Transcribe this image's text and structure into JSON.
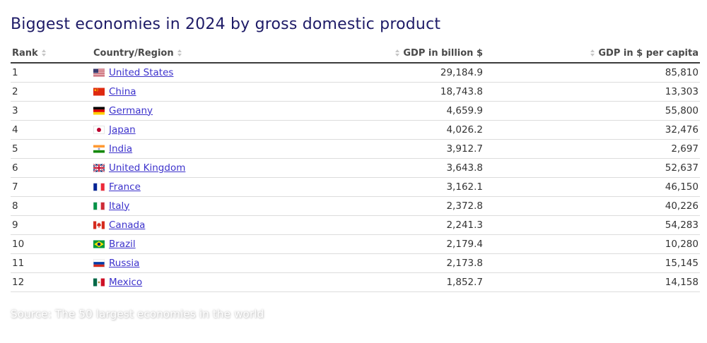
{
  "title": "Biggest economies in 2024 by gross domestic product",
  "colors": {
    "title_text": "#1e1b67",
    "link": "#3d33cc",
    "header_text": "#4a4a4a",
    "sort_icon": "#c6c6c6",
    "row_divider": "#dcdcdc",
    "header_divider": "#3c3c3c"
  },
  "table": {
    "columns": [
      {
        "key": "rank",
        "label": "Rank",
        "align": "left"
      },
      {
        "key": "country",
        "label": "Country/Region",
        "align": "left"
      },
      {
        "key": "gdp_billion",
        "label": "GDP in billion $",
        "align": "right"
      },
      {
        "key": "gdp_per_capita",
        "label": "GDP in $ per capita",
        "align": "right"
      }
    ],
    "rows": [
      {
        "rank": "1",
        "country": "United States",
        "flag": "us",
        "gdp_billion": "29,184.9",
        "gdp_per_capita": "85,810"
      },
      {
        "rank": "2",
        "country": "China",
        "flag": "cn",
        "gdp_billion": "18,743.8",
        "gdp_per_capita": "13,303"
      },
      {
        "rank": "3",
        "country": "Germany",
        "flag": "de",
        "gdp_billion": "4,659.9",
        "gdp_per_capita": "55,800"
      },
      {
        "rank": "4",
        "country": "Japan",
        "flag": "jp",
        "gdp_billion": "4,026.2",
        "gdp_per_capita": "32,476"
      },
      {
        "rank": "5",
        "country": "India",
        "flag": "in",
        "gdp_billion": "3,912.7",
        "gdp_per_capita": "2,697"
      },
      {
        "rank": "6",
        "country": "United Kingdom",
        "flag": "gb",
        "gdp_billion": "3,643.8",
        "gdp_per_capita": "52,637"
      },
      {
        "rank": "7",
        "country": "France",
        "flag": "fr",
        "gdp_billion": "3,162.1",
        "gdp_per_capita": "46,150"
      },
      {
        "rank": "8",
        "country": "Italy",
        "flag": "it",
        "gdp_billion": "2,372.8",
        "gdp_per_capita": "40,226"
      },
      {
        "rank": "9",
        "country": "Canada",
        "flag": "ca",
        "gdp_billion": "2,241.3",
        "gdp_per_capita": "54,283"
      },
      {
        "rank": "10",
        "country": "Brazil",
        "flag": "br",
        "gdp_billion": "2,179.4",
        "gdp_per_capita": "10,280"
      },
      {
        "rank": "11",
        "country": "Russia",
        "flag": "ru",
        "gdp_billion": "2,173.8",
        "gdp_per_capita": "15,145"
      },
      {
        "rank": "12",
        "country": "Mexico",
        "flag": "mx",
        "gdp_billion": "1,852.7",
        "gdp_per_capita": "14,158"
      }
    ]
  },
  "footer": {
    "source": "Source: The 50 largest economies in the world"
  }
}
